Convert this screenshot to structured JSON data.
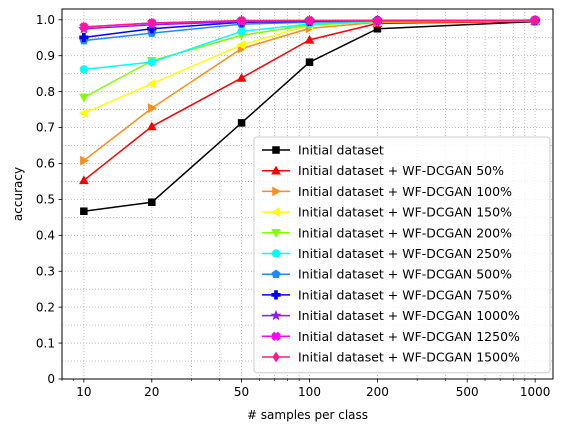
{
  "chart_data": {
    "type": "line",
    "title": "",
    "xlabel": "# samples per class",
    "ylabel": "accuracy",
    "x_scale": "log",
    "xlim": [
      8,
      1200
    ],
    "ylim": [
      0,
      1.03
    ],
    "x_ticks": [
      10,
      20,
      50,
      100,
      200,
      500,
      1000
    ],
    "x_tick_labels": [
      "10",
      "20",
      "50",
      "100",
      "200",
      "500",
      "1000"
    ],
    "y_ticks": [
      0,
      0.1,
      0.2,
      0.3,
      0.4,
      0.5,
      0.6,
      0.7,
      0.8,
      0.9,
      1.0
    ],
    "y_tick_labels": [
      "0",
      "0.1",
      "0.2",
      "0.3",
      "0.4",
      "0.5",
      "0.6",
      "0.7",
      "0.8",
      "0.9",
      "1.0"
    ],
    "grid": "dotted, major and minor",
    "legend_placement": "lower-right",
    "x": [
      10,
      20,
      50,
      100,
      200,
      1000
    ],
    "series": [
      {
        "name": "Initial dataset",
        "color": "#000000",
        "marker": "square",
        "values": [
          0.467,
          0.492,
          0.713,
          0.882,
          0.975,
          0.995
        ]
      },
      {
        "name": "Initial dataset + WF-DCGAN 50%",
        "color": "#ff0000",
        "marker": "triangle-up",
        "values": [
          0.553,
          0.703,
          0.838,
          0.944,
          0.99,
          0.996
        ]
      },
      {
        "name": "Initial dataset + WF-DCGAN 100%",
        "color": "#ff8c1a",
        "marker": "triangle-right",
        "values": [
          0.608,
          0.754,
          0.92,
          0.976,
          0.993,
          0.997
        ]
      },
      {
        "name": "Initial dataset + WF-DCGAN 150%",
        "color": "#ffff00",
        "marker": "triangle-left",
        "values": [
          0.74,
          0.822,
          0.93,
          0.985,
          0.995,
          0.997
        ]
      },
      {
        "name": "Initial dataset + WF-DCGAN 200%",
        "color": "#80ff00",
        "marker": "triangle-down",
        "values": [
          0.784,
          0.886,
          0.957,
          0.985,
          0.995,
          0.998
        ]
      },
      {
        "name": "Initial dataset + WF-DCGAN 250%",
        "color": "#00ffff",
        "marker": "circle",
        "values": [
          0.862,
          0.882,
          0.968,
          0.988,
          0.996,
          0.998
        ]
      },
      {
        "name": "Initial dataset + WF-DCGAN 500%",
        "color": "#1a8cff",
        "marker": "pentagon",
        "values": [
          0.942,
          0.963,
          0.988,
          0.993,
          0.997,
          0.998
        ]
      },
      {
        "name": "Initial dataset + WF-DCGAN 750%",
        "color": "#0000ff",
        "marker": "plus",
        "values": [
          0.951,
          0.975,
          0.993,
          0.996,
          0.998,
          0.998
        ]
      },
      {
        "name": "Initial dataset + WF-DCGAN 1000%",
        "color": "#8c1aff",
        "marker": "star",
        "values": [
          0.975,
          0.986,
          0.995,
          0.997,
          0.998,
          0.998
        ]
      },
      {
        "name": "Initial dataset + WF-DCGAN 1250%",
        "color": "#ff00ff",
        "marker": "x-filled",
        "values": [
          0.98,
          0.991,
          0.997,
          0.998,
          0.998,
          0.999
        ]
      },
      {
        "name": "Initial dataset + WF-DCGAN 1500%",
        "color": "#ff1a8c",
        "marker": "diamond",
        "values": [
          0.98,
          0.991,
          0.998,
          0.998,
          0.998,
          0.999
        ]
      }
    ]
  }
}
